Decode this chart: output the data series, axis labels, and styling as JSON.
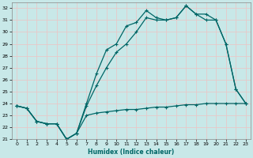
{
  "title": "",
  "xlabel": "Humidex (Indice chaleur)",
  "bg_color": "#c8e8e8",
  "grid_color": "#e8c8c8",
  "line_color": "#006666",
  "xlim": [
    -0.5,
    23.5
  ],
  "ylim": [
    21,
    32.5
  ],
  "yticks": [
    21,
    22,
    23,
    24,
    25,
    26,
    27,
    28,
    29,
    30,
    31,
    32
  ],
  "xticks": [
    0,
    1,
    2,
    3,
    4,
    5,
    6,
    7,
    8,
    9,
    10,
    11,
    12,
    13,
    14,
    15,
    16,
    17,
    18,
    19,
    20,
    21,
    22,
    23
  ],
  "series1_x": [
    0,
    1,
    2,
    3,
    4,
    5,
    6,
    7,
    8,
    9,
    10,
    11,
    12,
    13,
    14,
    15,
    16,
    17,
    18,
    19,
    20,
    21,
    22,
    23
  ],
  "series1_y": [
    23.8,
    23.6,
    22.5,
    22.3,
    22.3,
    21.0,
    21.5,
    23.0,
    23.2,
    23.3,
    23.4,
    23.5,
    23.5,
    23.6,
    23.7,
    23.7,
    23.8,
    23.9,
    23.9,
    24.0,
    24.0,
    24.0,
    24.0,
    24.0
  ],
  "series2_x": [
    0,
    1,
    2,
    3,
    4,
    5,
    6,
    7,
    8,
    9,
    10,
    11,
    12,
    13,
    14,
    15,
    16,
    17,
    18,
    19,
    20,
    21,
    22,
    23
  ],
  "series2_y": [
    23.8,
    23.6,
    22.5,
    22.3,
    22.3,
    21.0,
    21.5,
    24.0,
    26.5,
    28.5,
    29.0,
    30.5,
    30.8,
    31.8,
    31.2,
    31.0,
    31.2,
    32.2,
    31.5,
    31.5,
    31.0,
    29.0,
    25.2,
    24.0
  ],
  "series3_x": [
    0,
    1,
    2,
    3,
    4,
    5,
    6,
    7,
    8,
    9,
    10,
    11,
    12,
    13,
    14,
    15,
    16,
    17,
    18,
    19,
    20,
    21,
    22,
    23
  ],
  "series3_y": [
    23.8,
    23.6,
    22.5,
    22.3,
    22.3,
    21.0,
    21.5,
    23.8,
    25.5,
    27.0,
    28.3,
    29.0,
    30.0,
    31.2,
    31.0,
    31.0,
    31.2,
    32.2,
    31.5,
    31.0,
    31.0,
    29.0,
    25.2,
    24.0
  ]
}
